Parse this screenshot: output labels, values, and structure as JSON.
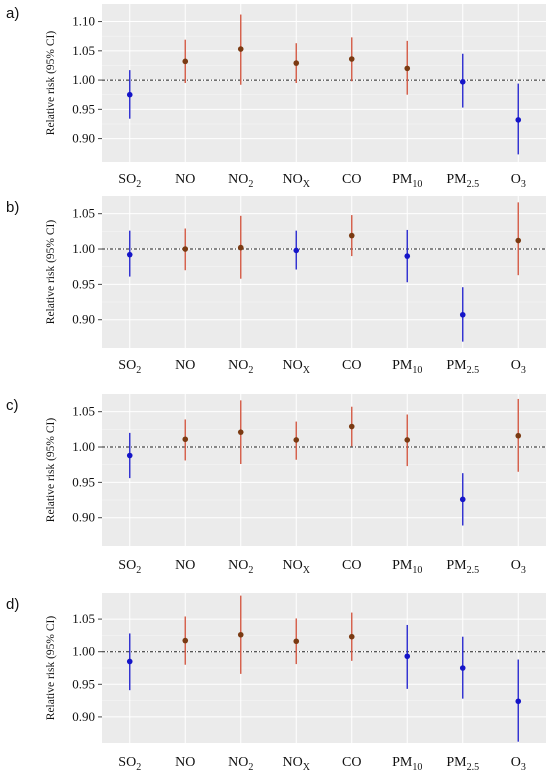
{
  "colors": {
    "panel_bg": "#ebebeb",
    "grid": "#ffffff",
    "increase": "#d45a45",
    "decrease": "#2a2ad0",
    "point_increase": "#7a3a12",
    "point_decrease": "#1515c8"
  },
  "chart_data": [
    {
      "type": "scatter",
      "panel_label": "a)",
      "ylabel": "Relative risk (95% CI)",
      "ylim": [
        0.86,
        1.13
      ],
      "yticks": [
        "0.90",
        "0.95",
        "1.00",
        "1.05",
        "1.10"
      ],
      "reference_line": 1.0,
      "categories": [
        {
          "base": "SO",
          "sub": "2"
        },
        {
          "base": "NO",
          "sub": ""
        },
        {
          "base": "NO",
          "sub": "2"
        },
        {
          "base": "NO",
          "sub": "X"
        },
        {
          "base": "CO",
          "sub": ""
        },
        {
          "base": "PM",
          "sub": "10"
        },
        {
          "base": "PM",
          "sub": "2.5"
        },
        {
          "base": "O",
          "sub": "3"
        }
      ],
      "estimate": [
        0.975,
        1.032,
        1.053,
        1.029,
        1.036,
        1.02,
        0.997,
        0.932
      ],
      "lower": [
        0.934,
        0.995,
        0.992,
        0.995,
        0.998,
        0.975,
        0.953,
        0.873
      ],
      "upper": [
        1.017,
        1.069,
        1.112,
        1.063,
        1.073,
        1.067,
        1.045,
        0.994
      ]
    },
    {
      "type": "scatter",
      "panel_label": "b)",
      "ylabel": "Relative risk (95% CI)",
      "ylim": [
        0.86,
        1.075
      ],
      "yticks": [
        "0.90",
        "0.95",
        "1.00",
        "1.05"
      ],
      "reference_line": 1.0,
      "categories": [
        {
          "base": "SO",
          "sub": "2"
        },
        {
          "base": "NO",
          "sub": ""
        },
        {
          "base": "NO",
          "sub": "2"
        },
        {
          "base": "NO",
          "sub": "X"
        },
        {
          "base": "CO",
          "sub": ""
        },
        {
          "base": "PM",
          "sub": "10"
        },
        {
          "base": "PM",
          "sub": "2.5"
        },
        {
          "base": "O",
          "sub": "3"
        }
      ],
      "estimate": [
        0.992,
        1.0,
        1.002,
        0.998,
        1.019,
        0.99,
        0.907,
        1.012
      ],
      "lower": [
        0.961,
        0.97,
        0.958,
        0.971,
        0.99,
        0.953,
        0.869,
        0.963
      ],
      "upper": [
        1.026,
        1.029,
        1.047,
        1.026,
        1.048,
        1.027,
        0.946,
        1.066
      ]
    },
    {
      "type": "scatter",
      "panel_label": "c)",
      "ylabel": "Relative risk (95% CI)",
      "ylim": [
        0.86,
        1.075
      ],
      "yticks": [
        "0.90",
        "0.95",
        "1.00",
        "1.05"
      ],
      "reference_line": 1.0,
      "categories": [
        {
          "base": "SO",
          "sub": "2"
        },
        {
          "base": "NO",
          "sub": ""
        },
        {
          "base": "NO",
          "sub": "2"
        },
        {
          "base": "NO",
          "sub": "X"
        },
        {
          "base": "CO",
          "sub": ""
        },
        {
          "base": "PM",
          "sub": "10"
        },
        {
          "base": "PM",
          "sub": "2.5"
        },
        {
          "base": "O",
          "sub": "3"
        }
      ],
      "estimate": [
        0.988,
        1.011,
        1.021,
        1.01,
        1.029,
        1.01,
        0.926,
        1.016
      ],
      "lower": [
        0.956,
        0.981,
        0.976,
        0.982,
        1.001,
        0.973,
        0.889,
        0.965
      ],
      "upper": [
        1.02,
        1.039,
        1.066,
        1.036,
        1.057,
        1.046,
        0.963,
        1.068
      ]
    },
    {
      "type": "scatter",
      "panel_label": "d)",
      "ylabel": "Relative risk (95% CI)",
      "ylim": [
        0.86,
        1.09
      ],
      "yticks": [
        "0.90",
        "0.95",
        "1.00",
        "1.05"
      ],
      "reference_line": 1.0,
      "categories": [
        {
          "base": "SO",
          "sub": "2"
        },
        {
          "base": "NO",
          "sub": ""
        },
        {
          "base": "NO",
          "sub": "2"
        },
        {
          "base": "NO",
          "sub": "X"
        },
        {
          "base": "CO",
          "sub": ""
        },
        {
          "base": "PM",
          "sub": "10"
        },
        {
          "base": "PM",
          "sub": "2.5"
        },
        {
          "base": "O",
          "sub": "3"
        }
      ],
      "estimate": [
        0.985,
        1.017,
        1.026,
        1.016,
        1.023,
        0.993,
        0.975,
        0.924
      ],
      "lower": [
        0.941,
        0.98,
        0.966,
        0.981,
        0.986,
        0.943,
        0.928,
        0.862
      ],
      "upper": [
        1.028,
        1.054,
        1.086,
        1.051,
        1.06,
        1.041,
        1.023,
        0.988
      ]
    }
  ]
}
